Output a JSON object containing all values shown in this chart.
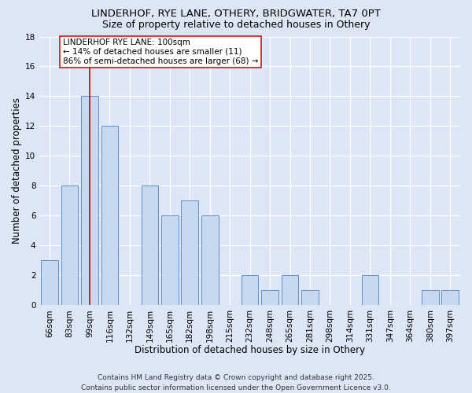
{
  "title": "LINDERHOF, RYE LANE, OTHERY, BRIDGWATER, TA7 0PT",
  "subtitle": "Size of property relative to detached houses in Othery",
  "xlabel": "Distribution of detached houses by size in Othery",
  "ylabel": "Number of detached properties",
  "categories": [
    "66sqm",
    "83sqm",
    "99sqm",
    "116sqm",
    "132sqm",
    "149sqm",
    "165sqm",
    "182sqm",
    "198sqm",
    "215sqm",
    "232sqm",
    "248sqm",
    "265sqm",
    "281sqm",
    "298sqm",
    "314sqm",
    "331sqm",
    "347sqm",
    "364sqm",
    "380sqm",
    "397sqm"
  ],
  "values": [
    3,
    8,
    14,
    12,
    0,
    8,
    6,
    7,
    6,
    0,
    2,
    1,
    2,
    1,
    0,
    0,
    2,
    0,
    0,
    1,
    1
  ],
  "bar_color": "#c8d8f0",
  "bar_edge_color": "#6090c8",
  "background_color": "#dce6f5",
  "grid_color": "#ffffff",
  "vline_x_index": 2,
  "vline_color": "#cc0000",
  "annotation_text": "LINDERHOF RYE LANE: 100sqm\n← 14% of detached houses are smaller (11)\n86% of semi-detached houses are larger (68) →",
  "annotation_box_color": "#ffffff",
  "annotation_box_edge": "#cc0000",
  "ylim": [
    0,
    18
  ],
  "yticks": [
    0,
    2,
    4,
    6,
    8,
    10,
    12,
    14,
    16,
    18
  ],
  "footer": "Contains HM Land Registry data © Crown copyright and database right 2025.\nContains public sector information licensed under the Open Government Licence v3.0.",
  "title_fontsize": 9.5,
  "subtitle_fontsize": 9,
  "axis_label_fontsize": 8.5,
  "tick_fontsize": 7.5,
  "annotation_fontsize": 7.5,
  "footer_fontsize": 6.5
}
